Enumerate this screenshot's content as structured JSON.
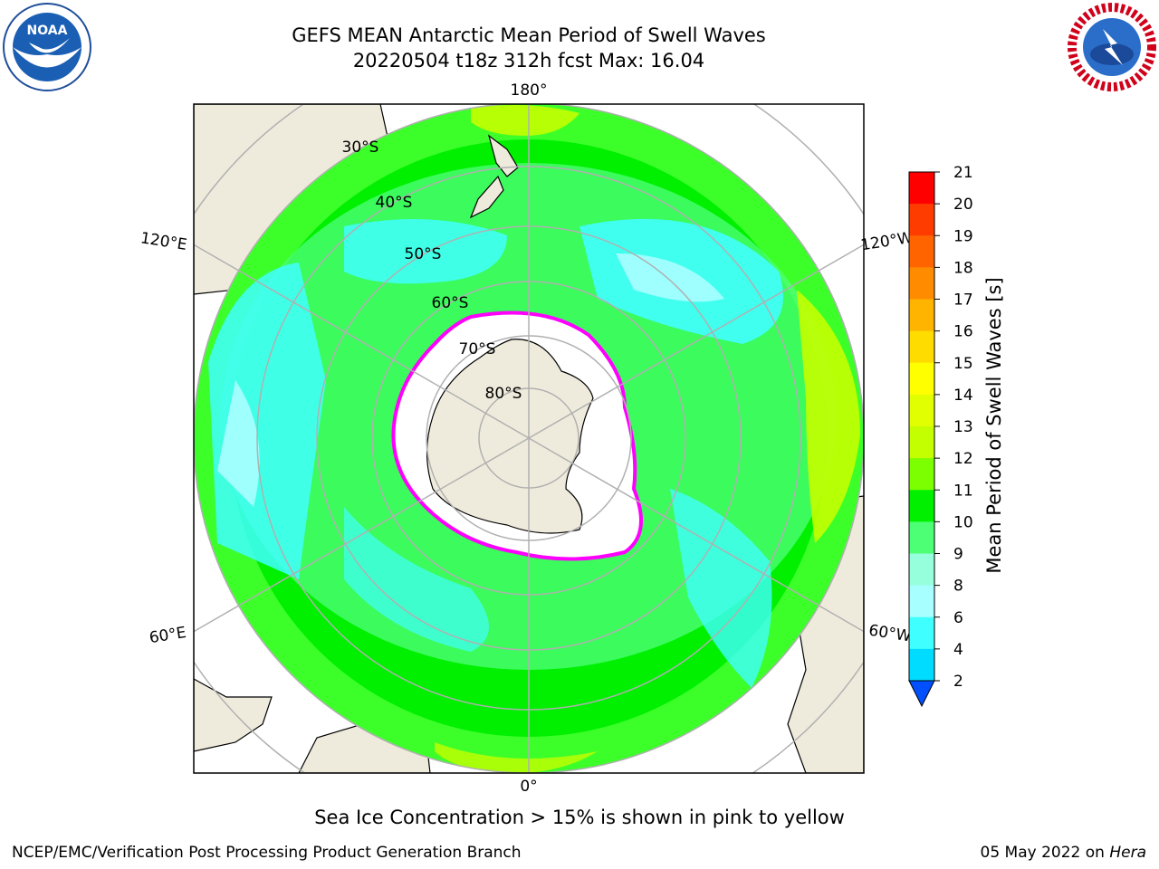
{
  "title": {
    "line1": "GEFS MEAN Antarctic Mean Period of Swell Waves",
    "line2": "20220504 t18z 312h fcst   Max: 16.04"
  },
  "map": {
    "projection": "south-polar-stereographic",
    "longitude_labels": [
      "180°",
      "120°E",
      "120°W",
      "60°E",
      "60°W",
      "0°"
    ],
    "latitude_labels": [
      "30°S",
      "40°S",
      "50°S",
      "60°S",
      "70°S",
      "80°S"
    ],
    "colors": {
      "land": "#efebdc",
      "ice": "#ffffff",
      "grid": "#b0b0b0"
    }
  },
  "colorbar": {
    "title": "Mean Period of Swell Waves [s]",
    "ticks": [
      "21",
      "20",
      "19",
      "18",
      "17",
      "16",
      "15",
      "14",
      "13",
      "12",
      "11",
      "10",
      "9",
      "8",
      "6",
      "4",
      "2"
    ],
    "colors": [
      "#ff0000",
      "#ff3c00",
      "#ff6400",
      "#ff8c00",
      "#ffb400",
      "#ffdc00",
      "#ffff00",
      "#e1ff00",
      "#c3ff00",
      "#7cff00",
      "#00f000",
      "#4cff74",
      "#96ffdc",
      "#a8ffff",
      "#40ffff",
      "#00dcff",
      "#0096ff",
      "#0050ff"
    ]
  },
  "note": "Sea Ice Concentration > 15% is shown in pink to yellow",
  "footer": {
    "left": "NCEP/EMC/Verification Post Processing Product Generation Branch",
    "right_prefix": "05 May 2022 on",
    "right_host": "Hera"
  }
}
